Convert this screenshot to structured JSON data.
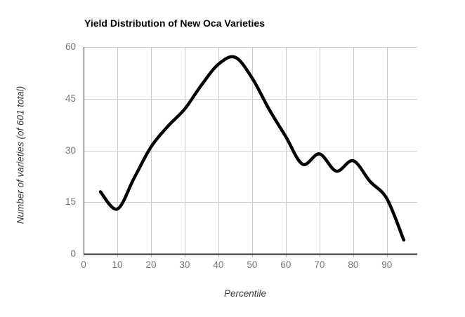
{
  "chart_data": {
    "type": "line",
    "title": "Yield Distribution of New Oca Varieties",
    "xlabel": "Percentile",
    "ylabel": "Number of varieties (of 601 total)",
    "x": [
      5,
      10,
      15,
      20,
      25,
      30,
      35,
      40,
      45,
      50,
      55,
      60,
      65,
      70,
      75,
      80,
      85,
      90,
      95
    ],
    "values": [
      18,
      13,
      22,
      31,
      37,
      42,
      49,
      55,
      57,
      51,
      42,
      34,
      26,
      29,
      24,
      27,
      21,
      16,
      4
    ],
    "xlim": [
      0,
      99
    ],
    "ylim": [
      0,
      60
    ],
    "xticks": [
      0,
      10,
      20,
      30,
      40,
      50,
      60,
      70,
      80,
      90
    ],
    "yticks": [
      0,
      15,
      30,
      45,
      60
    ],
    "grid": true,
    "legend": false,
    "smoothed": true,
    "line_color": "#000000",
    "line_width": 4.5,
    "gridline_color": "#cccccc",
    "axis_color": "#333333",
    "tick_mark_color": "#b8b8b8",
    "tick_label_color": "#757575",
    "title_color": "#000000",
    "axis_title_color": "#3d3d3d",
    "background_color": "#ffffff"
  }
}
